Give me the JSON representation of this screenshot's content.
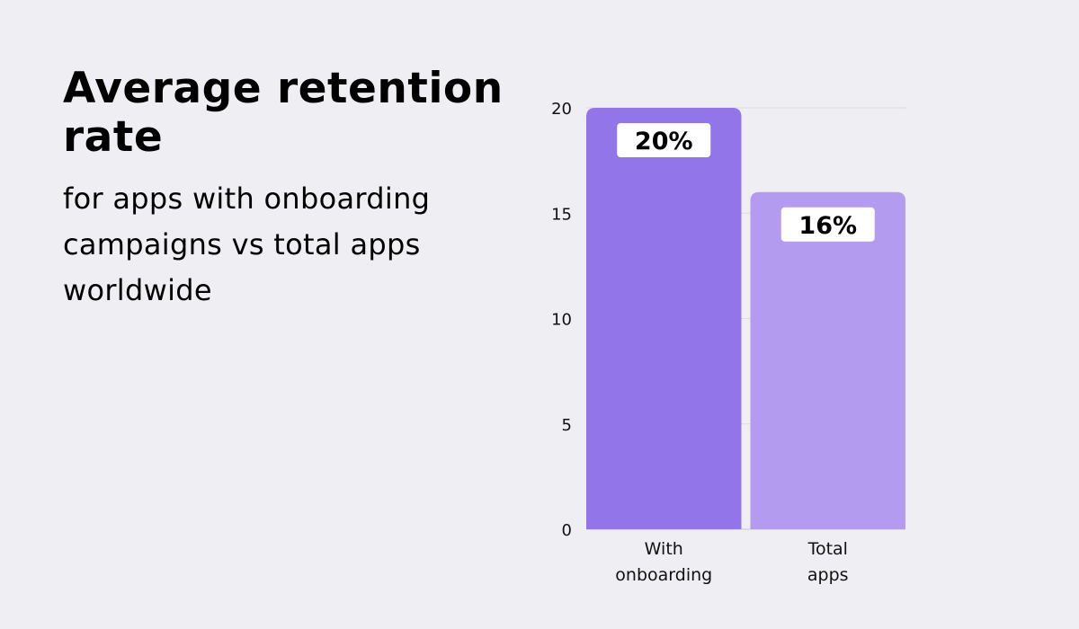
{
  "title": "Average retention rate",
  "subtitle": "for apps with onboarding campaigns vs total apps worldwide",
  "chart_data": {
    "type": "bar",
    "categories": [
      [
        "With",
        "onboarding"
      ],
      [
        "Total",
        "apps"
      ]
    ],
    "values": [
      20,
      16
    ],
    "data_labels": [
      "20%",
      "16%"
    ],
    "colors": [
      "#9375ea",
      "#b39bef"
    ],
    "ylim": [
      0,
      20
    ],
    "yticks": [
      0,
      5,
      10,
      15,
      20
    ],
    "grid": true,
    "legend": "none"
  }
}
